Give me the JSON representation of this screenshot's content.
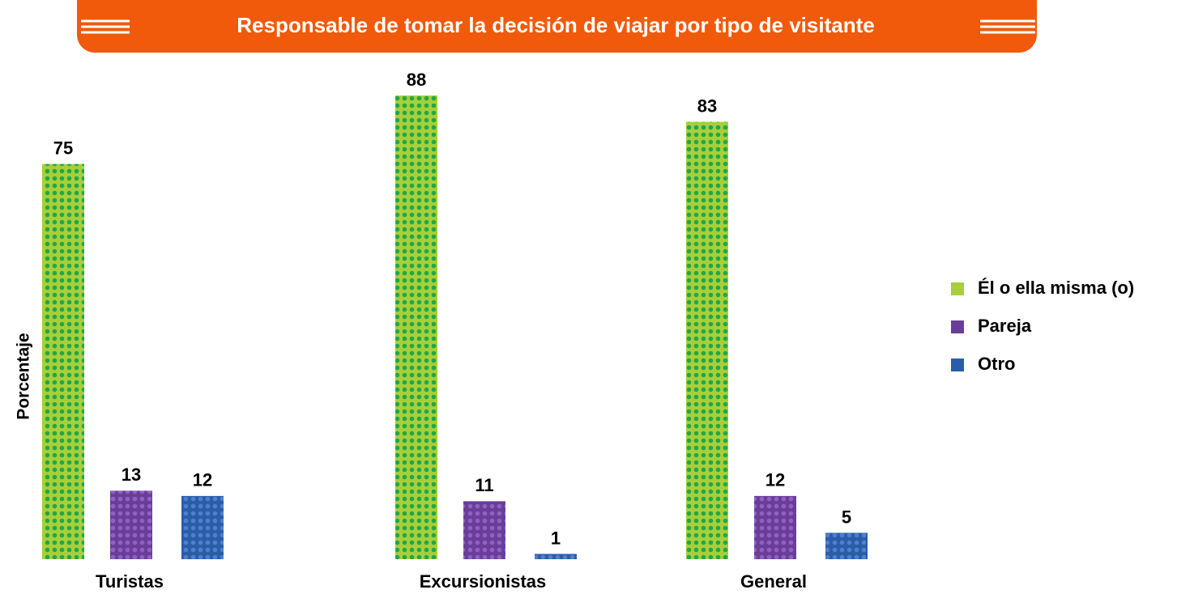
{
  "chart_data": {
    "type": "bar",
    "title": "Responsable de tomar la decisión de viajar por tipo de visitante",
    "y_label": "Porcentaje",
    "categories": [
      "Turistas",
      "Excursionistas",
      "General"
    ],
    "series": [
      {
        "name": "Él o ella misma (o)",
        "color": "#a8cf3a",
        "dot_color": "#1ea84a",
        "values": [
          75,
          88,
          83
        ]
      },
      {
        "name": "Pareja",
        "color": "#6a3d9a",
        "dot_color": "#8e62c0",
        "values": [
          13,
          11,
          12
        ]
      },
      {
        "name": "Otro",
        "color": "#2a5caa",
        "dot_color": "#4f80cc",
        "values": [
          12,
          1,
          5
        ]
      }
    ],
    "legend": "right"
  }
}
